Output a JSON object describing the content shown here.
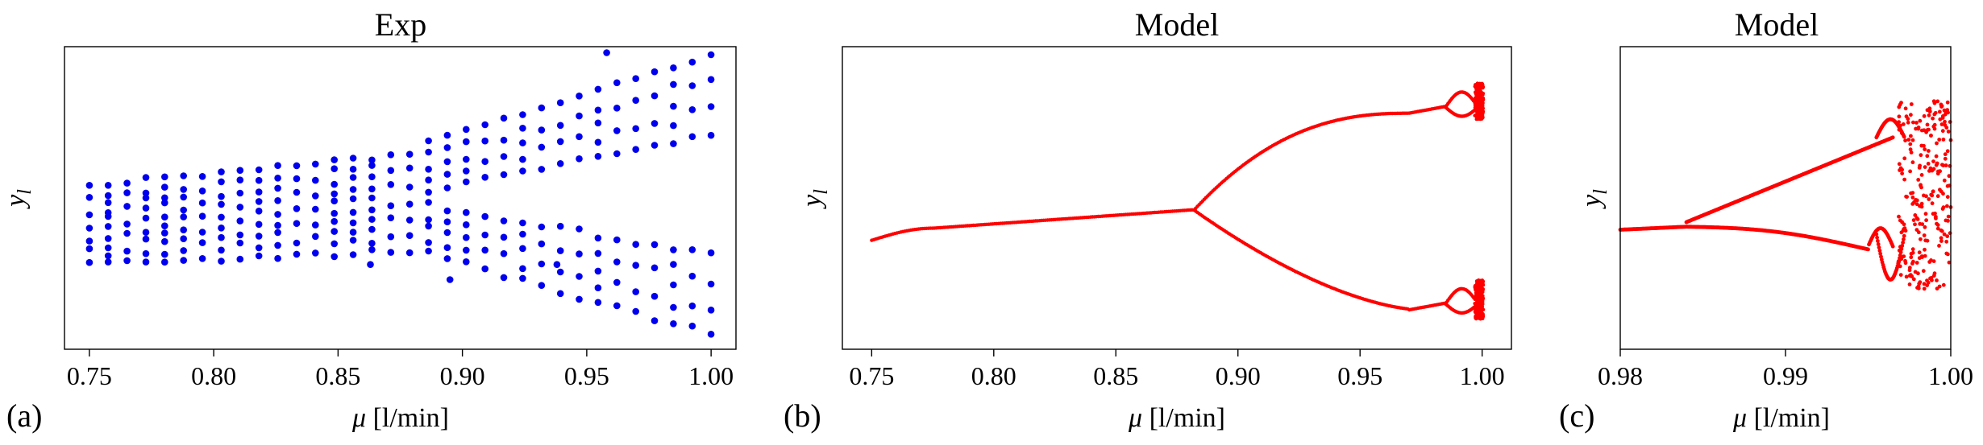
{
  "colors": {
    "exp": "#0000ee",
    "model": "#ff0000"
  },
  "chart_data": [
    {
      "type": "scatter",
      "panel_label": "(a)",
      "title": "Exp",
      "xlabel_symbol": "μ",
      "xlabel_unit": " [l/min]",
      "ylabel_main": "y",
      "ylabel_sub": "l",
      "xlim": [
        0.74,
        1.01
      ],
      "ylim": [
        0.0,
        1.0
      ],
      "xticks": [
        "0.75",
        "0.80",
        "0.85",
        "0.90",
        "0.95",
        "1.00"
      ],
      "yticks": [],
      "grid": false,
      "marker_color": "#0000ee"
    },
    {
      "type": "scatter",
      "panel_label": "(b)",
      "title": "Model",
      "xlabel_symbol": "μ",
      "xlabel_unit": " [l/min]",
      "ylabel_main": "y",
      "ylabel_sub": "l",
      "xlim": [
        0.738,
        1.012
      ],
      "ylim": [
        0.0,
        1.0
      ],
      "xticks": [
        "0.75",
        "0.80",
        "0.85",
        "0.90",
        "0.95",
        "1.00"
      ],
      "yticks": [],
      "grid": false,
      "marker_color": "#ff0000"
    },
    {
      "type": "scatter",
      "panel_label": "(c)",
      "title": "Model",
      "xlabel_symbol": "μ",
      "xlabel_unit": " [l/min]",
      "ylabel_main": "y",
      "ylabel_sub": "l",
      "xlim": [
        0.98,
        1.0
      ],
      "ylim": [
        0.0,
        1.0
      ],
      "xticks": [
        "0.98",
        "0.99",
        "1.00"
      ],
      "yticks": [],
      "grid": false,
      "marker_color": "#ff0000"
    }
  ]
}
